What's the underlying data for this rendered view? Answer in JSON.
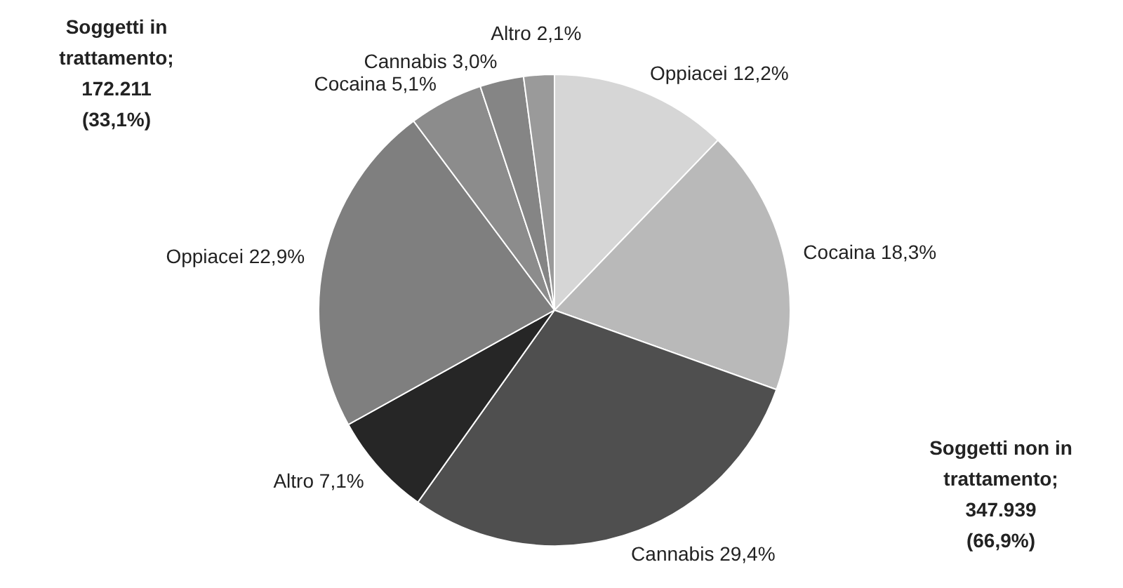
{
  "chart_data": {
    "type": "pie",
    "categories": [
      "Oppiacei",
      "Cocaina",
      "Cannabis",
      "Altro",
      "Oppiacei",
      "Cocaina",
      "Cannabis",
      "Altro"
    ],
    "values": [
      12.2,
      18.3,
      29.4,
      7.1,
      22.9,
      5.1,
      3.0,
      2.1
    ],
    "value_labels": [
      "12,2%",
      "18,3%",
      "29,4%",
      "7,1%",
      "22,9%",
      "5,1%",
      "3,0%",
      "2,1%"
    ],
    "colors": [
      "#d6d6d6",
      "#b9b9b9",
      "#4f4f4f",
      "#262626",
      "#7f7f7f",
      "#8c8c8c",
      "#858585",
      "#9a9a9a"
    ],
    "annotations": [
      "Soggetti in\ntrattamento;\n172.211\n(33,1%)",
      "Soggetti non in\ntrattamento;\n347.939\n(66,9%)"
    ],
    "legend": false
  }
}
